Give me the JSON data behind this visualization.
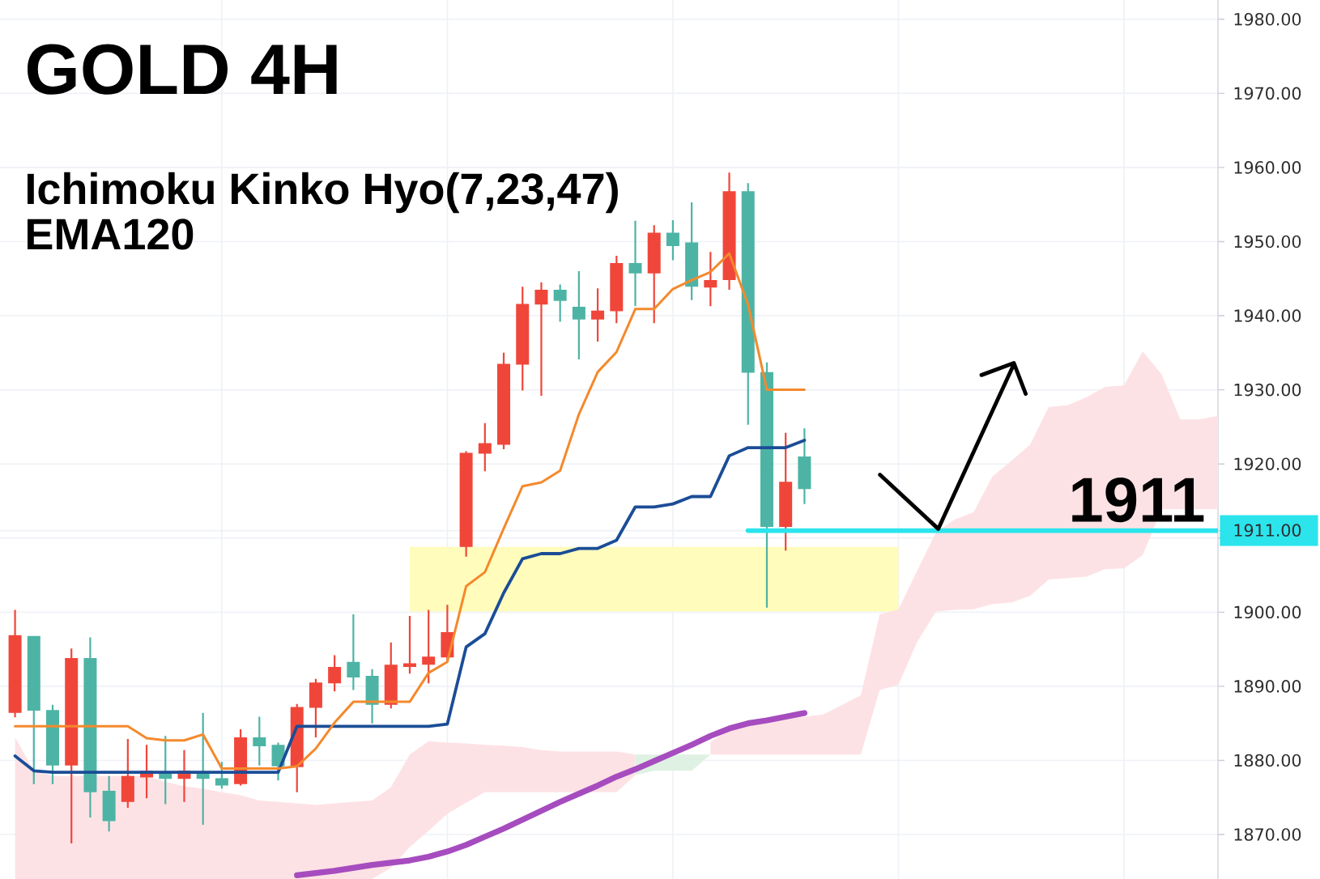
{
  "chart_data": {
    "type": "candlestick",
    "title": "GOLD 4H",
    "subtitle": "Ichimoku Kinko Hyo(7,23,47)",
    "annotations": [
      "EMA120",
      {
        "text": "1911",
        "y": 1911
      }
    ],
    "categories": [
      null,
      null,
      null,
      null,
      null,
      null,
      null,
      null,
      null,
      null,
      null,
      null,
      null,
      null,
      null,
      null,
      null,
      null,
      null,
      null,
      null,
      null,
      null,
      null,
      null,
      null,
      null,
      null,
      null,
      null,
      null,
      null,
      null,
      null,
      null,
      null,
      null,
      null,
      null,
      null,
      null,
      null,
      null,
      null,
      null,
      null,
      null,
      null,
      null,
      null,
      null,
      null,
      null,
      null,
      null,
      null,
      null,
      null,
      null,
      null,
      null,
      null,
      null,
      null,
      null
    ],
    "ohlc": [
      [
        1886.4,
        1900.3,
        1885.8,
        1896.9
      ],
      [
        1896.8,
        1896.8,
        1876.8,
        1886.7
      ],
      [
        1886.8,
        1887.5,
        1876.8,
        1879.3
      ],
      [
        1879.3,
        1895.1,
        1868.8,
        1893.8
      ],
      [
        1893.8,
        1896.6,
        1872.3,
        1875.7
      ],
      [
        1875.9,
        1877.9,
        1870.4,
        1871.8
      ],
      [
        1874.4,
        1882.9,
        1873.6,
        1877.9
      ],
      [
        1877.7,
        1882.1,
        1874.9,
        1878.6
      ],
      [
        1878.4,
        1883.3,
        1874.1,
        1877.5
      ],
      [
        1877.5,
        1881.4,
        1874.4,
        1878.6
      ],
      [
        1878.4,
        1886.4,
        1871.3,
        1877.5
      ],
      [
        1877.6,
        1879.8,
        1876.2,
        1876.6
      ],
      [
        1876.8,
        1884.2,
        1876.6,
        1883.1
      ],
      [
        1883.1,
        1885.9,
        1879.3,
        1881.9
      ],
      [
        1882.1,
        1882.4,
        1877.3,
        1879.2
      ],
      [
        1879.1,
        1887.6,
        1875.7,
        1887.2
      ],
      [
        1887.1,
        1891.0,
        1883.1,
        1890.5
      ],
      [
        1890.4,
        1894.2,
        1889.3,
        1892.6
      ],
      [
        1893.3,
        1899.7,
        1889.5,
        1891.2
      ],
      [
        1891.4,
        1892.3,
        1885.0,
        1887.5
      ],
      [
        1887.5,
        1895.9,
        1887.0,
        1892.9
      ],
      [
        1892.6,
        1899.5,
        1891.7,
        1893.1
      ],
      [
        1892.9,
        1900.3,
        1890.4,
        1894.0
      ],
      [
        1893.9,
        1901.0,
        1893.5,
        1897.3
      ],
      [
        1908.8,
        1921.7,
        1907.5,
        1921.5
      ],
      [
        1921.4,
        1925.5,
        1919.0,
        1922.8
      ],
      [
        1922.6,
        1935.0,
        1922.0,
        1933.5
      ],
      [
        1933.4,
        1943.9,
        1929.9,
        1941.6
      ],
      [
        1941.5,
        1944.5,
        1929.2,
        1943.5
      ],
      [
        1943.5,
        1944.2,
        1939.2,
        1942.0
      ],
      [
        1941.2,
        1946.0,
        1934.1,
        1939.5
      ],
      [
        1939.5,
        1943.7,
        1936.5,
        1940.7
      ],
      [
        1940.6,
        1948.1,
        1939.0,
        1947.1
      ],
      [
        1947.1,
        1952.8,
        1941.3,
        1945.7
      ],
      [
        1945.7,
        1952.2,
        1939.0,
        1951.2
      ],
      [
        1951.2,
        1952.9,
        1947.5,
        1949.4
      ],
      [
        1949.9,
        1955.3,
        1942.1,
        1943.9
      ],
      [
        1943.8,
        1948.6,
        1941.3,
        1944.8
      ],
      [
        1944.8,
        1959.3,
        1943.5,
        1956.8
      ],
      [
        1956.8,
        1957.9,
        1925.3,
        1932.3
      ],
      [
        1932.4,
        1933.7,
        1900.6,
        1911.5
      ],
      [
        1911.5,
        1924.2,
        1908.3,
        1917.6
      ],
      [
        1921.0,
        1924.8,
        1914.6,
        1916.6
      ],
      null,
      null,
      null,
      null,
      null,
      null,
      null,
      null,
      null,
      null,
      null,
      null,
      null,
      null,
      null,
      null,
      null,
      null,
      null,
      null,
      null,
      null
    ],
    "colors": [
      "#f0463a",
      "#4db4a5",
      "#4db4a5",
      "#f0463a",
      "#4db4a5",
      "#4db4a5",
      "#f0463a",
      "#f0463a",
      "#4db4a5",
      "#f0463a",
      "#4db4a5",
      "#4db4a5",
      "#f0463a",
      "#4db4a5",
      "#4db4a5",
      "#f0463a",
      "#f0463a",
      "#f0463a",
      "#4db4a5",
      "#4db4a5",
      "#f0463a",
      "#f0463a",
      "#f0463a",
      "#f0463a",
      "#f0463a",
      "#f0463a",
      "#f0463a",
      "#f0463a",
      "#f0463a",
      "#4db4a5",
      "#4db4a5",
      "#f0463a",
      "#f0463a",
      "#4db4a5",
      "#f0463a",
      "#4db4a5",
      "#4db4a5",
      "#f0463a",
      "#f0463a",
      "#4db4a5",
      "#4db4a5",
      "#f0463a",
      "#4db4a5",
      null,
      null,
      null,
      null,
      null,
      null,
      null,
      null,
      null,
      null,
      null,
      null,
      null,
      null,
      null,
      null,
      null,
      null,
      null,
      null,
      null,
      null
    ],
    "series": [
      {
        "type": "area",
        "color": "#fffcbc",
        "values": [
          null,
          null,
          null,
          null,
          null,
          null,
          null,
          null,
          null,
          null,
          null,
          null,
          null,
          null,
          null,
          null,
          null,
          null,
          null,
          null,
          null,
          null,
          null,
          null,
          null,
          null,
          null,
          null,
          null,
          null,
          null,
          null,
          null,
          null,
          null,
          null,
          null,
          null,
          null,
          null,
          null,
          null,
          null,
          null,
          null,
          null,
          null,
          null,
          null,
          null,
          null,
          null,
          null,
          null,
          null,
          null,
          null,
          null,
          null,
          null,
          null,
          null,
          null,
          null,
          null
        ],
        "lower": [
          null,
          null,
          null,
          null,
          null,
          null,
          null,
          null,
          null,
          null,
          null,
          null,
          null,
          null,
          null,
          null,
          null,
          null,
          null,
          null,
          null,
          1900.1,
          1900.1,
          1900.1,
          1900.1,
          1900.1,
          1900.1,
          1900.1,
          1900.1,
          1900.1,
          1900.1,
          1900.1,
          1900.1,
          1900.1,
          1900.1,
          1900.1,
          1900.1,
          1900.1,
          1900.1,
          1900.1,
          1900.1,
          1900.1,
          1900.1,
          1900.1,
          1900.1,
          1900.1,
          1900.1,
          1900.1,
          null,
          null,
          null,
          null,
          null,
          null,
          null,
          null,
          null,
          null,
          null,
          null,
          null,
          null,
          null,
          null,
          null
        ],
        "upper": [
          null,
          null,
          null,
          null,
          null,
          null,
          null,
          null,
          null,
          null,
          null,
          null,
          null,
          null,
          null,
          null,
          null,
          null,
          null,
          null,
          null,
          1908.8,
          1908.8,
          1908.8,
          1908.8,
          1908.8,
          1908.8,
          1908.8,
          1908.8,
          1908.8,
          1908.8,
          1908.8,
          1908.8,
          1908.8,
          1908.8,
          1908.8,
          1908.8,
          1908.8,
          1908.8,
          1908.8,
          1908.8,
          1908.8,
          1908.8,
          1908.8,
          1908.8,
          1908.8,
          1908.8,
          1908.8,
          null,
          null,
          null,
          null,
          null,
          null,
          null,
          null,
          null,
          null,
          null,
          null,
          null,
          null,
          null,
          null,
          null
        ]
      },
      {
        "type": "area",
        "color": "#fde2e5",
        "values": [
          null,
          null,
          null,
          null,
          null,
          null,
          null,
          null,
          null,
          null,
          null,
          null,
          null,
          null,
          null,
          null,
          null,
          null,
          null,
          null,
          null,
          null,
          null,
          null,
          null,
          null,
          null,
          null,
          null,
          null,
          null,
          null,
          null,
          null,
          null,
          null,
          null,
          null,
          null,
          null,
          null,
          null,
          null,
          null,
          null,
          null,
          null,
          null,
          null,
          null,
          null,
          null,
          null,
          null,
          null,
          null,
          null,
          null,
          null,
          null,
          null,
          null,
          null,
          null,
          null
        ],
        "lower": [
          1864.0,
          1864.0,
          1864.0,
          1864.0,
          1864.0,
          1864.0,
          1864.0,
          1864.0,
          1864.0,
          1864.0,
          1864.0,
          1864.0,
          1864.0,
          1864.0,
          1864.0,
          1864.0,
          1864.0,
          1864.0,
          1864.0,
          1864.0,
          1865.5,
          1868.3,
          1870.5,
          1872.8,
          1874.3,
          1875.7,
          1875.7,
          1875.7,
          1875.7,
          1875.7,
          1875.7,
          1875.7,
          1875.7,
          1878.0,
          null,
          null,
          null,
          1880.8,
          1880.8,
          1880.8,
          1880.8,
          1880.8,
          1880.8,
          1880.8,
          1880.8,
          1880.8,
          1889.5,
          1890.2,
          1896.0,
          1900.1,
          1900.3,
          1900.4,
          1901.1,
          1901.3,
          1902.2,
          1904.4,
          1904.6,
          1904.8,
          1905.8,
          1905.9,
          1907.7,
          1913.9,
          1913.9,
          1913.9,
          1913.9
        ],
        "upper": [
          1883.1,
          1878.6,
          1877.9,
          1877.9,
          1877.9,
          1877.9,
          1877.9,
          1877.9,
          1877.1,
          1876.5,
          1876.2,
          1875.7,
          1875.3,
          1874.6,
          1874.4,
          1874.2,
          1874.0,
          1874.2,
          1874.4,
          1874.6,
          1876.4,
          1880.8,
          1882.6,
          1882.4,
          1882.3,
          1882.1,
          1882.0,
          1881.8,
          1881.4,
          1881.2,
          1881.2,
          1881.2,
          1881.2,
          1880.8,
          null,
          null,
          null,
          1882.5,
          1884.2,
          1884.8,
          1885.2,
          1885.6,
          1885.9,
          1886.2,
          1887.5,
          1888.8,
          1899.7,
          1900.4,
          1905.6,
          1910.8,
          1912.5,
          1913.5,
          1918.3,
          1920.4,
          1922.6,
          1927.7,
          1927.9,
          1929.0,
          1930.4,
          1930.6,
          1935.2,
          1932.1,
          1926.0,
          1926.0,
          1926.5
        ]
      },
      {
        "type": "area",
        "color": "#dff1e3",
        "values": [
          null,
          null,
          null,
          null,
          null,
          null,
          null,
          null,
          null,
          null,
          null,
          null,
          null,
          null,
          null,
          null,
          null,
          null,
          null,
          null,
          null,
          null,
          null,
          null,
          null,
          null,
          null,
          null,
          null,
          null,
          null,
          null,
          null,
          null,
          null,
          null,
          null,
          null,
          null,
          null,
          null,
          null,
          null,
          null,
          null,
          null,
          null,
          null,
          null,
          null,
          null,
          null,
          null,
          null,
          null,
          null,
          null,
          null,
          null,
          null,
          null,
          null,
          null,
          null,
          null
        ],
        "lower": [
          null,
          null,
          null,
          null,
          null,
          null,
          null,
          null,
          null,
          null,
          null,
          null,
          null,
          null,
          null,
          null,
          null,
          null,
          null,
          null,
          null,
          null,
          null,
          null,
          null,
          null,
          null,
          null,
          null,
          null,
          null,
          null,
          null,
          1878.0,
          1878.6,
          1878.6,
          1878.6,
          1880.8,
          null,
          null,
          null,
          null,
          null,
          null,
          null,
          null,
          null,
          null,
          null,
          null,
          null,
          null,
          null,
          null,
          null,
          null,
          null,
          null,
          null,
          null,
          null,
          null,
          null,
          null,
          null
        ],
        "upper": [
          null,
          null,
          null,
          null,
          null,
          null,
          null,
          null,
          null,
          null,
          null,
          null,
          null,
          null,
          null,
          null,
          null,
          null,
          null,
          null,
          null,
          null,
          null,
          null,
          null,
          null,
          null,
          null,
          null,
          null,
          null,
          null,
          null,
          1880.8,
          1880.8,
          1880.8,
          1880.8,
          1880.8,
          null,
          null,
          null,
          null,
          null,
          null,
          null,
          null,
          null,
          null,
          null,
          null,
          null,
          null,
          null,
          null,
          null,
          null,
          null,
          null,
          null,
          null,
          null,
          null,
          null,
          null,
          null
        ]
      },
      {
        "type": "line",
        "color": "#a64cbf",
        "values": [
          null,
          null,
          null,
          null,
          null,
          null,
          null,
          null,
          null,
          null,
          null,
          null,
          null,
          null,
          null,
          1864.5,
          1864.8,
          1865.1,
          1865.5,
          1865.9,
          1866.2,
          1866.5,
          1867.0,
          1867.7,
          1868.6,
          1869.7,
          1870.8,
          1872.0,
          1873.2,
          1874.4,
          1875.5,
          1876.6,
          1877.8,
          1878.8,
          1879.9,
          1881.0,
          1882.1,
          1883.3,
          1884.3,
          1885.0,
          1885.4,
          1885.9,
          1886.4,
          null,
          null,
          null,
          null,
          null,
          null,
          null,
          null,
          null,
          null,
          null,
          null,
          null,
          null,
          null,
          null,
          null,
          null,
          null,
          null,
          null,
          null
        ]
      },
      {
        "type": "line",
        "color": "#1b4d96",
        "values": [
          1880.6,
          1878.6,
          1878.4,
          1878.4,
          1878.4,
          1878.4,
          1878.4,
          1878.4,
          1878.4,
          1878.4,
          1878.4,
          1878.4,
          1878.4,
          1878.4,
          1878.4,
          1884.6,
          1884.6,
          1884.6,
          1884.6,
          1884.6,
          1884.6,
          1884.6,
          1884.6,
          1884.9,
          1895.3,
          1897.1,
          1902.6,
          1907.2,
          1907.9,
          1907.9,
          1908.6,
          1908.6,
          1909.7,
          1914.2,
          1914.2,
          1914.6,
          1915.6,
          1915.6,
          1921.1,
          1922.2,
          1922.2,
          1922.2,
          1923.2,
          null,
          null,
          null,
          null,
          null,
          null,
          null,
          null,
          null,
          null,
          null,
          null,
          null,
          null,
          null,
          null,
          null,
          null,
          null,
          null,
          null,
          null
        ]
      },
      {
        "type": "line",
        "color": "#f4892c",
        "values": [
          1884.6,
          1884.6,
          1884.6,
          1884.6,
          1884.6,
          1884.6,
          1884.6,
          1883.0,
          1882.7,
          1882.7,
          1883.5,
          1878.9,
          1878.9,
          1878.9,
          1878.9,
          1879.2,
          1881.6,
          1885.1,
          1887.9,
          1887.9,
          1887.9,
          1887.9,
          1891.8,
          1893.3,
          1903.5,
          1905.4,
          1911.3,
          1917.0,
          1917.5,
          1919.1,
          1926.7,
          1932.4,
          1935.1,
          1940.9,
          1940.9,
          1943.6,
          1944.8,
          1945.9,
          1948.4,
          1941.5,
          1930.0,
          1930.0,
          1930.0,
          null,
          null,
          null,
          null,
          null,
          null,
          null,
          null,
          null,
          null,
          null,
          null,
          null,
          null,
          null,
          null,
          null,
          null,
          null,
          null,
          null,
          null
        ]
      },
      {
        "type": "line",
        "color": "#2be4ec",
        "values": [
          null,
          null,
          null,
          null,
          null,
          null,
          null,
          null,
          null,
          null,
          null,
          null,
          null,
          null,
          null,
          null,
          null,
          null,
          null,
          null,
          null,
          null,
          null,
          null,
          null,
          null,
          null,
          null,
          null,
          null,
          null,
          null,
          null,
          null,
          null,
          null,
          null,
          null,
          null,
          1911,
          1911,
          1911,
          1911,
          1911,
          1911,
          1911,
          1911,
          1911,
          1911,
          1911,
          1911,
          1911,
          1911,
          1911,
          1911,
          1911,
          1911,
          1911,
          1911,
          1911,
          1911,
          1911,
          1911,
          1911,
          1911
        ]
      }
    ],
    "ylim": [
      1864,
      1982.6
    ],
    "yticks": [
      {
        "value": 1870,
        "label": "1870.00"
      },
      {
        "value": 1880,
        "label": "1880.00"
      },
      {
        "value": 1890,
        "label": "1890.00"
      },
      {
        "value": 1900,
        "label": "1900.00"
      },
      {
        "value": 1910,
        "label": null
      },
      {
        "value": 1920,
        "label": "1920.00"
      },
      {
        "value": 1930,
        "label": "1930.00"
      },
      {
        "value": 1940,
        "label": "1940.00"
      },
      {
        "value": 1950,
        "label": "1950.00"
      },
      {
        "value": 1960,
        "label": "1960.00"
      },
      {
        "value": 1970,
        "label": "1970.00"
      },
      {
        "value": 1980,
        "label": "1980.00"
      },
      {
        "value": 1911,
        "label": "1911.00"
      }
    ],
    "grid": true,
    "tick_labels": "y"
  }
}
